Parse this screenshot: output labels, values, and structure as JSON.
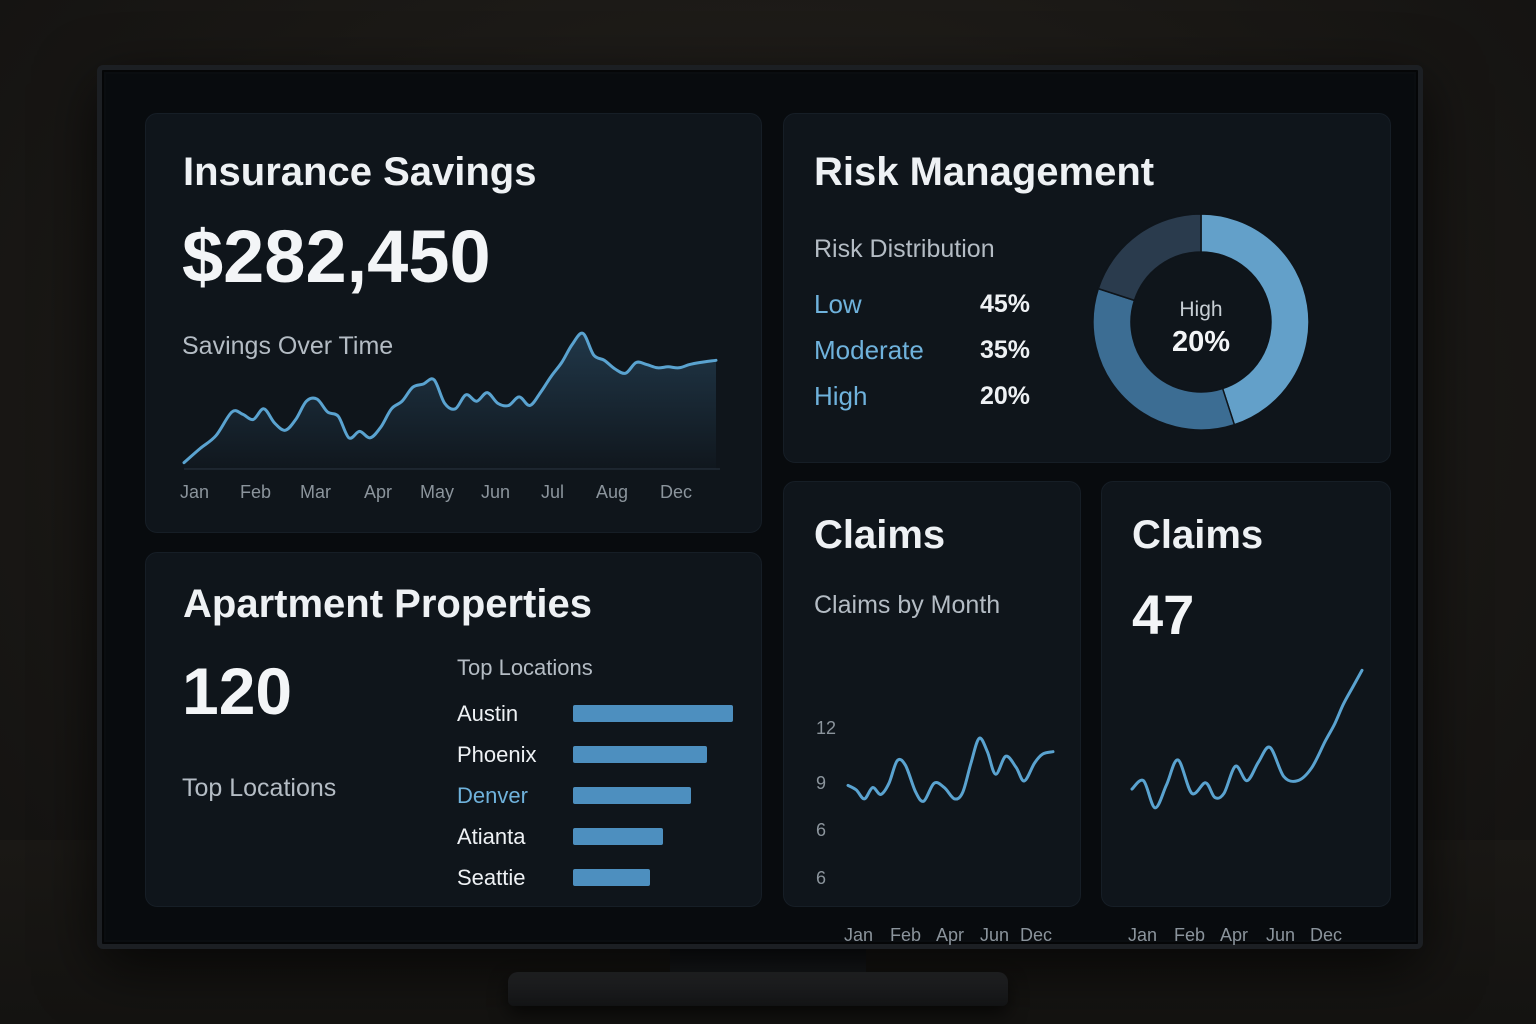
{
  "savings": {
    "title": "Insurance Savings",
    "amount": "$282,450",
    "chart_title": "Savings Over Time"
  },
  "risk": {
    "title": "Risk Management",
    "subtitle": "Risk Distribution",
    "items": [
      {
        "label": "Low",
        "value": "45%"
      },
      {
        "label": "Moderate",
        "value": "35%"
      },
      {
        "label": "High",
        "value": "20%"
      }
    ],
    "donut_center_label": "High",
    "donut_center_value": "20%"
  },
  "properties": {
    "title": "Apartment Properties",
    "count": "120",
    "left_label": "Top Locations",
    "list_title": "Top Locations"
  },
  "claims_chart_card": {
    "title": "Claims",
    "subtitle": "Claims by Month"
  },
  "claims_count_card": {
    "title": "Claims",
    "count": "47"
  },
  "colors": {
    "accent": "#5aa3d0",
    "accent_bar": "#4d8fbf",
    "card_bg": "#0f151b",
    "screen_bg": "#080b0e"
  },
  "chart_data": [
    {
      "type": "area",
      "name": "savings-over-time",
      "categories": [
        "Jan",
        "Feb",
        "Mar",
        "Apr",
        "May",
        "Jun",
        "Jul",
        "Aug",
        "Dec"
      ],
      "x": [
        0,
        0.03,
        0.06,
        0.09,
        0.11,
        0.13,
        0.15,
        0.17,
        0.19,
        0.21,
        0.23,
        0.25,
        0.27,
        0.29,
        0.31,
        0.33,
        0.35,
        0.37,
        0.39,
        0.41,
        0.43,
        0.45,
        0.47,
        0.49,
        0.51,
        0.53,
        0.55,
        0.57,
        0.59,
        0.61,
        0.63,
        0.65,
        0.67,
        0.69,
        0.71,
        0.73,
        0.75,
        0.77,
        0.79,
        0.81,
        0.83,
        0.85,
        0.87,
        0.89,
        0.91,
        0.93,
        0.95,
        0.97,
        1.0
      ],
      "y": [
        0.05,
        0.18,
        0.3,
        0.52,
        0.5,
        0.45,
        0.55,
        0.42,
        0.35,
        0.45,
        0.62,
        0.64,
        0.52,
        0.48,
        0.28,
        0.34,
        0.28,
        0.38,
        0.55,
        0.62,
        0.75,
        0.78,
        0.82,
        0.6,
        0.55,
        0.68,
        0.62,
        0.7,
        0.6,
        0.58,
        0.66,
        0.58,
        0.7,
        0.85,
        0.98,
        1.15,
        1.25,
        1.05,
        1.0,
        0.92,
        0.88,
        0.98,
        0.96,
        0.93,
        0.94,
        0.93,
        0.96,
        0.98,
        1.0
      ],
      "ylim": [
        0,
        1.3
      ],
      "grid": false
    },
    {
      "type": "pie",
      "name": "risk-distribution",
      "categories": [
        "Low",
        "Moderate",
        "High"
      ],
      "values": [
        45,
        35,
        20
      ]
    },
    {
      "type": "bar",
      "name": "top-locations",
      "orientation": "horizontal",
      "categories": [
        "Austin",
        "Phoenix",
        "Denver",
        "Atianta",
        "Seattie"
      ],
      "values": [
        100,
        84,
        74,
        56,
        48
      ],
      "highlight_category": "Denver"
    },
    {
      "type": "line",
      "name": "claims-by-month",
      "categories": [
        "Jan",
        "Feb",
        "Apr",
        "Jun",
        "Dec"
      ],
      "y_ticks": [
        "12",
        "9",
        "6",
        "6"
      ],
      "x": [
        0,
        0.04,
        0.08,
        0.12,
        0.16,
        0.2,
        0.24,
        0.28,
        0.33,
        0.37,
        0.42,
        0.47,
        0.52,
        0.56,
        0.6,
        0.64,
        0.68,
        0.72,
        0.77,
        0.82,
        0.86,
        0.91,
        0.95,
        1.0
      ],
      "y": [
        6.5,
        6.3,
        5.9,
        6.4,
        6.1,
        6.6,
        7.6,
        7.4,
        6.2,
        5.8,
        6.6,
        6.4,
        5.9,
        6.2,
        7.5,
        8.6,
        8.0,
        7.0,
        7.8,
        7.3,
        6.7,
        7.5,
        7.9,
        8.0
      ],
      "ylim": [
        4.2,
        12
      ],
      "grid": false
    },
    {
      "type": "line",
      "name": "claims-count-trend",
      "categories": [
        "Jan",
        "Feb",
        "Apr",
        "Jun",
        "Dec"
      ],
      "x": [
        0,
        0.05,
        0.1,
        0.15,
        0.2,
        0.26,
        0.32,
        0.36,
        0.4,
        0.45,
        0.5,
        0.55,
        0.6,
        0.66,
        0.72,
        0.78,
        0.84,
        0.88,
        0.92,
        0.96,
        1.0
      ],
      "y": [
        6.5,
        6.9,
        5.6,
        6.7,
        7.9,
        6.3,
        6.8,
        6.1,
        6.3,
        7.6,
        6.9,
        7.8,
        8.5,
        7.1,
        6.9,
        7.5,
        8.8,
        9.6,
        10.6,
        11.4,
        12.2
      ],
      "ylim": [
        4.2,
        12.6
      ],
      "grid": false
    }
  ]
}
